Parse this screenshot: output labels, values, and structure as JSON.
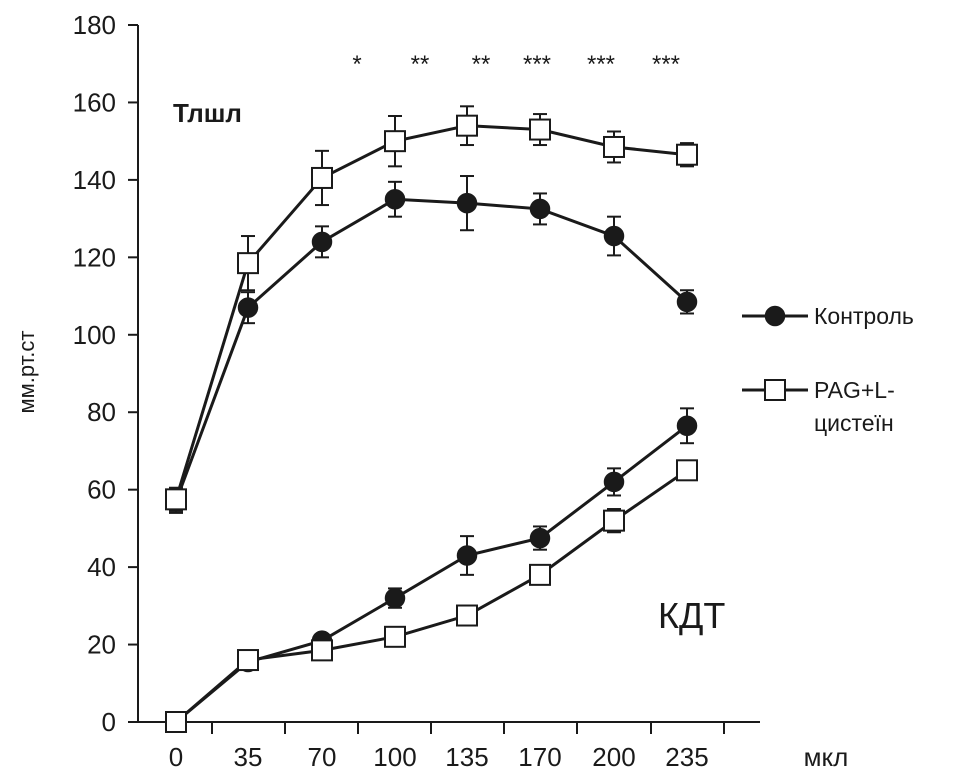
{
  "chart_data": {
    "type": "line",
    "ylabel": "мм.рт.ст",
    "xlabel": "мкл",
    "ylim": [
      0,
      180
    ],
    "yticks": [
      0,
      20,
      40,
      60,
      80,
      100,
      120,
      140,
      160,
      180
    ],
    "categories": [
      "0",
      "35",
      "70",
      "100",
      "135",
      "170",
      "200",
      "235"
    ],
    "grid": false,
    "legend_position": "right",
    "legend": [
      {
        "marker": "filled-circle",
        "label_lines": [
          "Контроль"
        ]
      },
      {
        "marker": "open-square",
        "label_lines": [
          "PAG+L-",
          "цистеїн"
        ]
      }
    ],
    "group_labels": {
      "upper": "Тлшл",
      "lower": "КДТ"
    },
    "significance": [
      "*",
      "**",
      "**",
      "***",
      "***",
      "***"
    ],
    "series": [
      {
        "group": "Тлшл",
        "marker": "filled-circle",
        "values": [
          57,
          107,
          124,
          135,
          134,
          132.5,
          125.5,
          108.5
        ],
        "errors": [
          3,
          4,
          4,
          4.5,
          7,
          4,
          5,
          3
        ]
      },
      {
        "group": "Тлшл",
        "marker": "open-square",
        "values": [
          57.5,
          118.5,
          140.5,
          150,
          154,
          153,
          148.5,
          146.5
        ],
        "errors": [
          3,
          7,
          7,
          6.5,
          5,
          4,
          4,
          3
        ]
      },
      {
        "group": "КДТ",
        "marker": "filled-circle",
        "values": [
          0,
          15.5,
          21,
          32,
          43,
          47.5,
          62,
          76.5
        ],
        "errors": [
          0,
          0,
          0,
          2.5,
          5,
          3,
          3.5,
          4.5
        ]
      },
      {
        "group": "КДТ",
        "marker": "open-square",
        "values": [
          0,
          16,
          18.5,
          22,
          27.5,
          38,
          52,
          65
        ],
        "errors": [
          0,
          0,
          0,
          0,
          0,
          0,
          3,
          2
        ]
      }
    ],
    "colors": {
      "line": "#1a1a1a",
      "fill_open": "#ffffff"
    }
  }
}
